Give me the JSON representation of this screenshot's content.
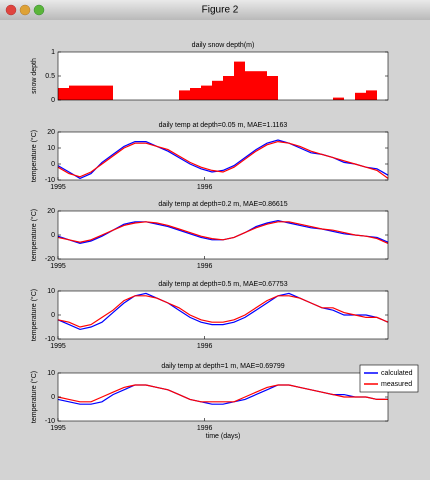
{
  "window": {
    "title": "Figure 2"
  },
  "chart_data": [
    {
      "type": "bar",
      "title": "daily snow depth(m)",
      "ylabel": "snow depth",
      "color": "#ff0000",
      "x": [
        1995,
        1995.075,
        1995.15,
        1995.225,
        1995.3,
        1995.375,
        1995.45,
        1995.525,
        1995.6,
        1995.675,
        1995.75,
        1995.825,
        1995.9,
        1995.975,
        1996.05,
        1996.125,
        1996.2,
        1996.275,
        1996.35,
        1996.425,
        1996.5,
        1996.575,
        1996.65,
        1996.725,
        1996.8,
        1996.875,
        1996.95,
        1997.025,
        1997.1,
        1997.175,
        1997.25
      ],
      "values": [
        0.25,
        0.3,
        0.3,
        0.3,
        0.3,
        0,
        0,
        0,
        0,
        0,
        0,
        0.2,
        0.25,
        0.3,
        0.4,
        0.5,
        0.8,
        0.6,
        0.6,
        0.5,
        0,
        0,
        0,
        0,
        0,
        0.05,
        0,
        0.15,
        0.2,
        0,
        0
      ],
      "xlim": [
        1995,
        1997.25
      ],
      "ylim": [
        0,
        1
      ],
      "yticks": [
        0,
        0.5,
        1
      ]
    },
    {
      "type": "line",
      "title": "daily temp at depth=0.05 m,   MAE=1.1163",
      "ylabel": "temperature (°C)",
      "x": [
        1995,
        1995.075,
        1995.15,
        1995.225,
        1995.3,
        1995.375,
        1995.45,
        1995.525,
        1995.6,
        1995.675,
        1995.75,
        1995.825,
        1995.9,
        1995.975,
        1996.05,
        1996.125,
        1996.2,
        1996.275,
        1996.35,
        1996.425,
        1996.5,
        1996.575,
        1996.65,
        1996.725,
        1996.8,
        1996.875,
        1996.95,
        1997.025,
        1997.1,
        1997.175,
        1997.25
      ],
      "series": [
        {
          "color": "#0000ff",
          "values": [
            -1,
            -5,
            -9,
            -6,
            1,
            6,
            11,
            14,
            14,
            11,
            8,
            4,
            0,
            -3,
            -5,
            -4,
            -1,
            4,
            9,
            13,
            15,
            13,
            10,
            7,
            6,
            4,
            1,
            0,
            -2,
            -3,
            -7
          ]
        },
        {
          "color": "#ff0000",
          "values": [
            -2,
            -6,
            -8,
            -5,
            0,
            5,
            10,
            13,
            13,
            11,
            9,
            5,
            1,
            -2,
            -4,
            -5,
            -2,
            3,
            8,
            12,
            14,
            13,
            11,
            8,
            6,
            4,
            2,
            0,
            -2,
            -4,
            -9
          ]
        }
      ],
      "xlim": [
        1995,
        1997.25
      ],
      "xticks": [
        1995,
        1996
      ],
      "ylim": [
        -10,
        20
      ],
      "yticks": [
        -10,
        0,
        10,
        20
      ]
    },
    {
      "type": "line",
      "title": "daily temp at depth=0.2 m,   MAE=0.86615",
      "ylabel": "temperature (°C)",
      "x": [
        1995,
        1995.075,
        1995.15,
        1995.225,
        1995.3,
        1995.375,
        1995.45,
        1995.525,
        1995.6,
        1995.675,
        1995.75,
        1995.825,
        1995.9,
        1995.975,
        1996.05,
        1996.125,
        1996.2,
        1996.275,
        1996.35,
        1996.425,
        1996.5,
        1996.575,
        1996.65,
        1996.725,
        1996.8,
        1996.875,
        1996.95,
        1997.025,
        1997.1,
        1997.175,
        1997.25
      ],
      "series": [
        {
          "color": "#0000ff",
          "values": [
            -1,
            -4,
            -7,
            -5,
            -1,
            4,
            9,
            11,
            11,
            9,
            7,
            4,
            1,
            -2,
            -4,
            -4,
            -2,
            2,
            7,
            10,
            12,
            10,
            8,
            6,
            5,
            3,
            1,
            0,
            -1,
            -2,
            -6
          ]
        },
        {
          "color": "#ff0000",
          "values": [
            -2,
            -4,
            -6,
            -4,
            0,
            4,
            8,
            10,
            11,
            10,
            8,
            5,
            2,
            -1,
            -3,
            -4,
            -2,
            2,
            6,
            9,
            11,
            11,
            9,
            7,
            5,
            4,
            2,
            0,
            -1,
            -3,
            -7
          ]
        }
      ],
      "xlim": [
        1995,
        1997.25
      ],
      "xticks": [
        1995,
        1996
      ],
      "ylim": [
        -20,
        20
      ],
      "yticks": [
        -20,
        0,
        20
      ]
    },
    {
      "type": "line",
      "title": "daily temp at depth=0.5 m,   MAE=0.67753",
      "ylabel": "temperature (°C)",
      "x": [
        1995,
        1995.075,
        1995.15,
        1995.225,
        1995.3,
        1995.375,
        1995.45,
        1995.525,
        1995.6,
        1995.675,
        1995.75,
        1995.825,
        1995.9,
        1995.975,
        1996.05,
        1996.125,
        1996.2,
        1996.275,
        1996.35,
        1996.425,
        1996.5,
        1996.575,
        1996.65,
        1996.725,
        1996.8,
        1996.875,
        1996.95,
        1997.025,
        1997.1,
        1997.175,
        1997.25
      ],
      "series": [
        {
          "color": "#0000ff",
          "values": [
            -2,
            -4,
            -6,
            -5,
            -3,
            1,
            5,
            8,
            9,
            7,
            5,
            2,
            -1,
            -3,
            -4,
            -4,
            -3,
            -1,
            2,
            5,
            8,
            9,
            7,
            5,
            3,
            2,
            0,
            0,
            0,
            -1,
            -3
          ]
        },
        {
          "color": "#ff0000",
          "values": [
            -2,
            -3,
            -5,
            -4,
            -1,
            2,
            6,
            8,
            8,
            7,
            5,
            3,
            0,
            -2,
            -3,
            -3,
            -2,
            0,
            3,
            6,
            8,
            8,
            7,
            5,
            3,
            3,
            1,
            0,
            -1,
            -1,
            -3
          ]
        }
      ],
      "xlim": [
        1995,
        1997.25
      ],
      "xticks": [
        1995,
        1996
      ],
      "ylim": [
        -10,
        10
      ],
      "yticks": [
        -10,
        0,
        10
      ]
    },
    {
      "type": "line",
      "title": "daily temp at depth=1 m,   MAE=0.69799",
      "ylabel": "temperature (°C)",
      "xlabel": "time (days)",
      "legend": "outside-right",
      "x": [
        1995,
        1995.075,
        1995.15,
        1995.225,
        1995.3,
        1995.375,
        1995.45,
        1995.525,
        1995.6,
        1995.675,
        1995.75,
        1995.825,
        1995.9,
        1995.975,
        1996.05,
        1996.125,
        1996.2,
        1996.275,
        1996.35,
        1996.425,
        1996.5,
        1996.575,
        1996.65,
        1996.725,
        1996.8,
        1996.875,
        1996.95,
        1997.025,
        1997.1,
        1997.175,
        1997.25
      ],
      "series": [
        {
          "name": "calculated",
          "color": "#0000ff",
          "values": [
            -1,
            -2,
            -3,
            -3,
            -2,
            1,
            3,
            5,
            5,
            4,
            3,
            1,
            -1,
            -2,
            -3,
            -3,
            -2,
            -1,
            1,
            3,
            5,
            5,
            4,
            3,
            2,
            1,
            1,
            0,
            0,
            -1,
            -1
          ]
        },
        {
          "name": "measured",
          "color": "#ff0000",
          "values": [
            0,
            -1,
            -2,
            -2,
            0,
            2,
            4,
            5,
            5,
            4,
            3,
            1,
            -1,
            -2,
            -2,
            -2,
            -2,
            0,
            2,
            4,
            5,
            5,
            4,
            3,
            2,
            1,
            0,
            0,
            0,
            -1,
            -1
          ]
        }
      ],
      "xlim": [
        1995,
        1997.25
      ],
      "xticks": [
        1995,
        1996
      ],
      "ylim": [
        -10,
        10
      ],
      "yticks": [
        -10,
        0,
        10
      ]
    }
  ]
}
